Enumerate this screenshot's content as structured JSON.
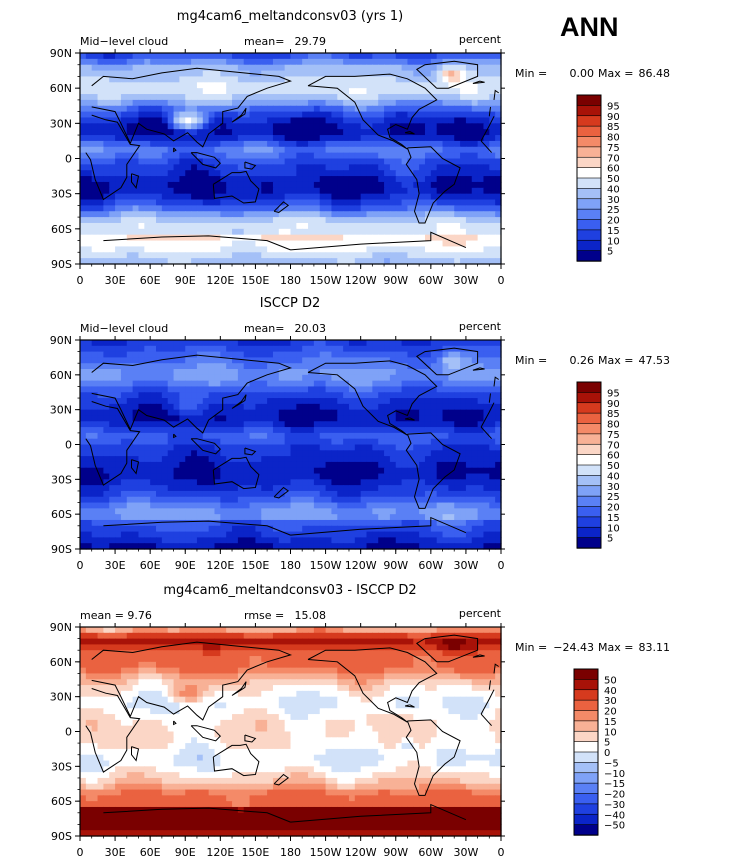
{
  "season": "ANN",
  "chart_data": [
    {
      "type": "heatmap",
      "title": "mg4cam6_meltandconsv03 (yrs 1)",
      "left_label": "Mid−level cloud",
      "stat_label": "mean=",
      "stat_value": "29.79",
      "units": "percent",
      "min_label": "Min =",
      "min_value": "0.00",
      "max_label": "Max =",
      "max_value": "86.48",
      "levels": [
        "5",
        "10",
        "15",
        "20",
        "25",
        "30",
        "40",
        "50",
        "60",
        "70",
        "75",
        "80",
        "85",
        "90",
        "95"
      ],
      "colors": [
        "#00008b",
        "#0b24c8",
        "#1f40e0",
        "#3a5ff0",
        "#5a80f5",
        "#7fa2f7",
        "#a4c0f7",
        "#d2e2f9",
        "#ffffff",
        "#fbd6c6",
        "#f8b196",
        "#f48a68",
        "#ea6240",
        "#d63a1e",
        "#a81208",
        "#7a0000"
      ],
      "field": "model",
      "x": [
        "0",
        "30E",
        "60E",
        "90E",
        "120E",
        "150E",
        "180",
        "150W",
        "120W",
        "90W",
        "60W",
        "30W",
        "0"
      ],
      "y": [
        "90N",
        "60N",
        "30N",
        "0",
        "30S",
        "60S",
        "90S"
      ]
    },
    {
      "type": "heatmap",
      "title": "ISCCP D2",
      "left_label": "Mid−level cloud",
      "stat_label": "mean=",
      "stat_value": "20.03",
      "units": "percent",
      "min_label": "Min =",
      "min_value": "0.26",
      "max_label": "Max =",
      "max_value": "47.53",
      "levels": [
        "5",
        "10",
        "15",
        "20",
        "25",
        "30",
        "40",
        "50",
        "60",
        "70",
        "75",
        "80",
        "85",
        "90",
        "95"
      ],
      "colors": [
        "#00008b",
        "#0b24c8",
        "#1f40e0",
        "#3a5ff0",
        "#5a80f5",
        "#7fa2f7",
        "#a4c0f7",
        "#d2e2f9",
        "#ffffff",
        "#fbd6c6",
        "#f8b196",
        "#f48a68",
        "#ea6240",
        "#d63a1e",
        "#a81208",
        "#7a0000"
      ],
      "field": "obs",
      "x": [
        "0",
        "30E",
        "60E",
        "90E",
        "120E",
        "150E",
        "180",
        "150W",
        "120W",
        "90W",
        "60W",
        "30W",
        "0"
      ],
      "y": [
        "90N",
        "60N",
        "30N",
        "0",
        "30S",
        "60S",
        "90S"
      ]
    },
    {
      "type": "heatmap",
      "title": "mg4cam6_meltandconsv03 - ISCCP D2",
      "left_label": "mean =   9.76",
      "stat_label": "rmse =",
      "stat_value": "15.08",
      "units": "percent",
      "min_label": "Min =",
      "min_value": "−24.43",
      "max_label": "Max =",
      "max_value": "83.11",
      "levels": [
        "−50",
        "−40",
        "−30",
        "−20",
        "−15",
        "−10",
        "−5",
        "0",
        "5",
        "10",
        "15",
        "20",
        "30",
        "40",
        "50"
      ],
      "colors": [
        "#00008b",
        "#0b24c8",
        "#1f40e0",
        "#3a5ff0",
        "#5a80f5",
        "#7fa2f7",
        "#a4c0f7",
        "#d2e2f9",
        "#ffffff",
        "#fbd6c6",
        "#f8b196",
        "#f48a68",
        "#ea6240",
        "#d63a1e",
        "#a81208",
        "#7a0000"
      ],
      "field": "diff",
      "x": [
        "0",
        "30E",
        "60E",
        "90E",
        "120E",
        "150E",
        "180",
        "150W",
        "120W",
        "90W",
        "60W",
        "30W",
        "0"
      ],
      "y": [
        "90N",
        "60N",
        "30N",
        "0",
        "30S",
        "60S",
        "90S"
      ]
    }
  ]
}
